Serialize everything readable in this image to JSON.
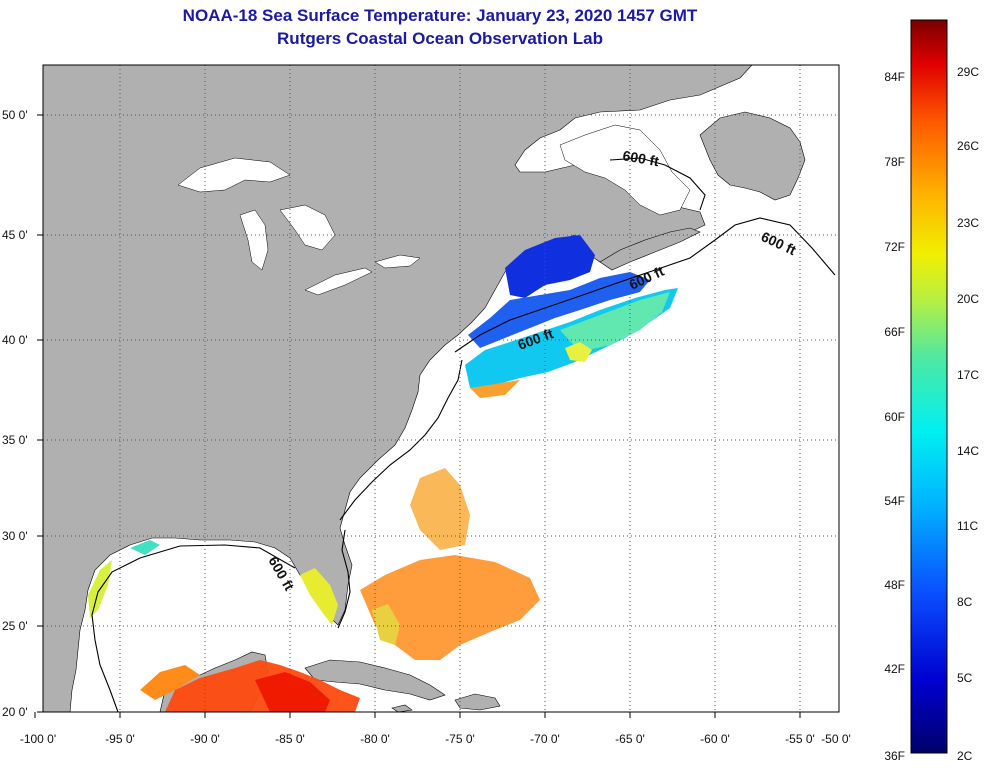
{
  "title": {
    "line1": "NOAA-18 Sea Surface Temperature:  January 23, 2020 1457 GMT",
    "line2": "Rutgers Coastal Ocean Observation Lab"
  },
  "axes": {
    "longitude_ticks": [
      "-100 0'",
      "-95 0'",
      "-90 0'",
      "-85 0'",
      "-80 0'",
      "-75 0'",
      "-70 0'",
      "-65 0'",
      "-60 0'",
      "-55 0'",
      "-50 0'"
    ],
    "latitude_ticks": [
      "50 0'",
      "45 0'",
      "40 0'",
      "35 0'",
      "30 0'",
      "25 0'",
      "20 0'"
    ]
  },
  "contour_labels": [
    "600 ft",
    "600 ft",
    "600 ft",
    "600 ft",
    "600 ft"
  ],
  "colorbar": {
    "fahrenheit": [
      "84F",
      "78F",
      "72F",
      "66F",
      "60F",
      "54F",
      "48F",
      "42F",
      "36F"
    ],
    "celsius": [
      "29C",
      "26C",
      "23C",
      "20C",
      "17C",
      "14C",
      "11C",
      "8C",
      "5C",
      "2C"
    ]
  },
  "colors": {
    "land": "#b0b0b0",
    "ocean_nodata": "#ffffff",
    "title": "#1a1aa6"
  }
}
